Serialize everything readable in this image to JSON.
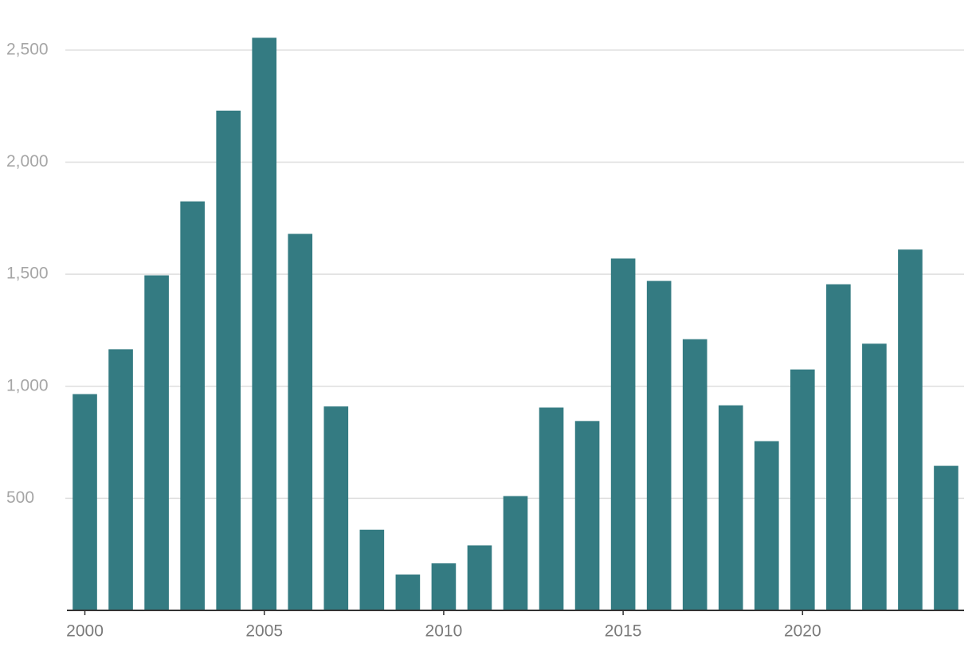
{
  "chart_data": {
    "type": "bar",
    "x": [
      2000,
      2001,
      2002,
      2003,
      2004,
      2005,
      2006,
      2007,
      2008,
      2009,
      2010,
      2011,
      2012,
      2013,
      2014,
      2015,
      2016,
      2017,
      2018,
      2019,
      2020,
      2021,
      2022,
      2023,
      2024
    ],
    "values": [
      965,
      1165,
      1495,
      1825,
      2230,
      2555,
      1680,
      910,
      360,
      160,
      210,
      290,
      510,
      905,
      845,
      1570,
      1470,
      1210,
      915,
      755,
      1075,
      1455,
      1190,
      1610,
      645
    ],
    "color": "#347b82",
    "xlim": [
      1999.5,
      2024.5
    ],
    "xticks": [
      2000,
      2005,
      2010,
      2015,
      2020
    ],
    "ylim": [
      0,
      2560
    ],
    "yticks": [
      500,
      {
        "value": 1000,
        "label": "1,000"
      },
      {
        "value": 1500,
        "label": "1,500"
      },
      {
        "value": 2000,
        "label": "2,000"
      },
      {
        "value": 2500,
        "label": "2,500"
      }
    ],
    "grid": true
  }
}
